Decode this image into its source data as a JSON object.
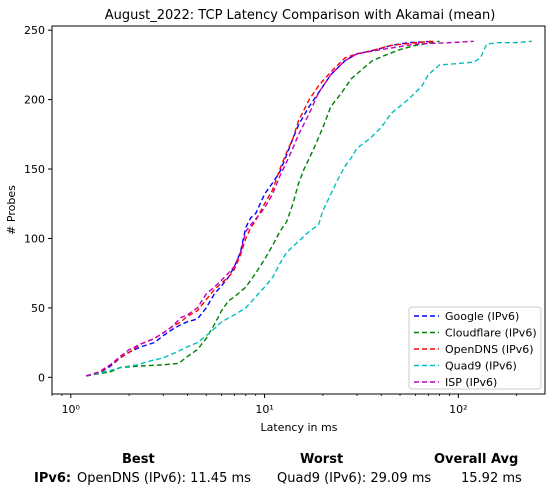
{
  "chart_data": {
    "type": "line",
    "title": "August_2022: TCP Latency Comparison with Akamai (mean)",
    "xlabel": "Latency in ms",
    "ylabel": "# Probes",
    "xscale": "log",
    "xlim": [
      0.8,
      280
    ],
    "ylim": [
      -12,
      253
    ],
    "xticks": [
      {
        "value": 1,
        "label": "10⁰"
      },
      {
        "value": 10,
        "label": "10¹"
      },
      {
        "value": 100,
        "label": "10²"
      }
    ],
    "yticks": [
      0,
      50,
      100,
      150,
      200,
      250
    ],
    "grid": false,
    "legend": "lower-right",
    "series": [
      {
        "name": "Google (IPv6)",
        "color": "#0000ff",
        "points": [
          [
            1.2,
            1
          ],
          [
            1.4,
            3
          ],
          [
            1.6,
            8
          ],
          [
            1.8,
            14
          ],
          [
            2.0,
            18
          ],
          [
            2.3,
            22
          ],
          [
            2.7,
            25
          ],
          [
            3.0,
            30
          ],
          [
            3.3,
            34
          ],
          [
            3.7,
            38
          ],
          [
            4.0,
            40
          ],
          [
            4.5,
            42
          ],
          [
            5.0,
            50
          ],
          [
            5.5,
            60
          ],
          [
            6.0,
            66
          ],
          [
            6.5,
            72
          ],
          [
            7.0,
            80
          ],
          [
            7.5,
            90
          ],
          [
            8.0,
            108
          ],
          [
            8.5,
            115
          ],
          [
            9.0,
            118
          ],
          [
            9.5,
            125
          ],
          [
            10.0,
            132
          ],
          [
            11.0,
            140
          ],
          [
            12.0,
            148
          ],
          [
            13.0,
            160
          ],
          [
            14.0,
            172
          ],
          [
            15.0,
            182
          ],
          [
            17.0,
            195
          ],
          [
            19.0,
            205
          ],
          [
            22.0,
            218
          ],
          [
            26.0,
            228
          ],
          [
            30.0,
            233
          ],
          [
            38.0,
            236
          ],
          [
            45.0,
            239
          ],
          [
            55.0,
            241
          ],
          [
            75.0,
            242
          ]
        ]
      },
      {
        "name": "Cloudflare (IPv6)",
        "color": "#008000",
        "points": [
          [
            1.2,
            1
          ],
          [
            1.6,
            4
          ],
          [
            1.8,
            7
          ],
          [
            2.2,
            8
          ],
          [
            3.0,
            9
          ],
          [
            3.6,
            10
          ],
          [
            4.0,
            15
          ],
          [
            4.5,
            20
          ],
          [
            5.0,
            28
          ],
          [
            5.5,
            38
          ],
          [
            6.0,
            48
          ],
          [
            6.5,
            55
          ],
          [
            7.0,
            58
          ],
          [
            8.0,
            65
          ],
          [
            9.0,
            75
          ],
          [
            10.0,
            85
          ],
          [
            11.0,
            95
          ],
          [
            12.0,
            105
          ],
          [
            13.0,
            112
          ],
          [
            14.0,
            125
          ],
          [
            15.0,
            140
          ],
          [
            16.0,
            150
          ],
          [
            18.0,
            165
          ],
          [
            20.0,
            180
          ],
          [
            22.0,
            195
          ],
          [
            25.0,
            205
          ],
          [
            28.0,
            215
          ],
          [
            32.0,
            222
          ],
          [
            36.0,
            228
          ],
          [
            42.0,
            232
          ],
          [
            50.0,
            236
          ],
          [
            60.0,
            239
          ],
          [
            80.0,
            242
          ]
        ]
      },
      {
        "name": "OpenDNS (IPv6)",
        "color": "#ff0000",
        "points": [
          [
            1.2,
            1
          ],
          [
            1.4,
            3
          ],
          [
            1.6,
            9
          ],
          [
            1.8,
            14
          ],
          [
            2.0,
            18
          ],
          [
            2.3,
            24
          ],
          [
            2.7,
            28
          ],
          [
            3.0,
            32
          ],
          [
            3.3,
            36
          ],
          [
            3.7,
            40
          ],
          [
            4.0,
            44
          ],
          [
            4.5,
            48
          ],
          [
            5.0,
            56
          ],
          [
            5.5,
            63
          ],
          [
            6.0,
            68
          ],
          [
            6.5,
            72
          ],
          [
            7.0,
            78
          ],
          [
            7.5,
            88
          ],
          [
            8.0,
            100
          ],
          [
            8.5,
            108
          ],
          [
            9.0,
            113
          ],
          [
            10.0,
            125
          ],
          [
            11.0,
            135
          ],
          [
            12.0,
            150
          ],
          [
            13.0,
            162
          ],
          [
            14.0,
            172
          ],
          [
            15.0,
            185
          ],
          [
            17.0,
            200
          ],
          [
            19.0,
            210
          ],
          [
            22.0,
            220
          ],
          [
            26.0,
            230
          ],
          [
            30.0,
            233
          ],
          [
            35.0,
            235
          ],
          [
            45.0,
            239
          ],
          [
            60.0,
            241
          ],
          [
            75.0,
            242
          ]
        ]
      },
      {
        "name": "Quad9 (IPv6)",
        "color": "#00bfbf",
        "points": [
          [
            1.2,
            1
          ],
          [
            1.6,
            5
          ],
          [
            1.8,
            7
          ],
          [
            2.2,
            9
          ],
          [
            2.6,
            12
          ],
          [
            3.0,
            14
          ],
          [
            3.5,
            18
          ],
          [
            4.0,
            22
          ],
          [
            4.5,
            25
          ],
          [
            5.0,
            30
          ],
          [
            5.5,
            35
          ],
          [
            6.0,
            40
          ],
          [
            7.0,
            45
          ],
          [
            8.0,
            50
          ],
          [
            9.0,
            58
          ],
          [
            10.0,
            65
          ],
          [
            11.0,
            72
          ],
          [
            12.0,
            82
          ],
          [
            13.0,
            90
          ],
          [
            15.0,
            98
          ],
          [
            17.0,
            105
          ],
          [
            19.0,
            110
          ],
          [
            20.0,
            120
          ],
          [
            22.0,
            132
          ],
          [
            24.0,
            143
          ],
          [
            26.0,
            152
          ],
          [
            28.0,
            158
          ],
          [
            30.0,
            165
          ],
          [
            35.0,
            172
          ],
          [
            40.0,
            180
          ],
          [
            45.0,
            190
          ],
          [
            55.0,
            200
          ],
          [
            60.0,
            205
          ],
          [
            65.0,
            210
          ],
          [
            70.0,
            218
          ],
          [
            80.0,
            225
          ],
          [
            100.0,
            226
          ],
          [
            120.0,
            227
          ],
          [
            130.0,
            230
          ],
          [
            140.0,
            240
          ],
          [
            160.0,
            241
          ],
          [
            200.0,
            241
          ],
          [
            240.0,
            242
          ]
        ]
      },
      {
        "name": "ISP (IPv6)",
        "color": "#bf00bf",
        "points": [
          [
            1.2,
            1
          ],
          [
            1.4,
            4
          ],
          [
            1.6,
            9
          ],
          [
            1.8,
            15
          ],
          [
            2.0,
            20
          ],
          [
            2.3,
            24
          ],
          [
            2.7,
            28
          ],
          [
            3.0,
            32
          ],
          [
            3.3,
            36
          ],
          [
            3.7,
            43
          ],
          [
            4.0,
            45
          ],
          [
            4.5,
            50
          ],
          [
            5.0,
            60
          ],
          [
            5.5,
            65
          ],
          [
            6.0,
            70
          ],
          [
            6.5,
            75
          ],
          [
            7.0,
            80
          ],
          [
            7.5,
            90
          ],
          [
            8.0,
            105
          ],
          [
            8.5,
            110
          ],
          [
            9.0,
            114
          ],
          [
            10.0,
            122
          ],
          [
            11.0,
            132
          ],
          [
            12.0,
            145
          ],
          [
            13.0,
            155
          ],
          [
            14.0,
            165
          ],
          [
            15.0,
            175
          ],
          [
            17.0,
            190
          ],
          [
            19.0,
            205
          ],
          [
            22.0,
            218
          ],
          [
            26.0,
            228
          ],
          [
            30.0,
            233
          ],
          [
            40.0,
            236
          ],
          [
            60.0,
            240
          ],
          [
            90.0,
            241
          ],
          [
            120.0,
            242
          ]
        ]
      }
    ]
  },
  "summary": {
    "best_header": "Best",
    "worst_header": "Worst",
    "avg_header": "Overall Avg",
    "row_label": "IPv6",
    "row_sep": ":",
    "best_value": "OpenDNS (IPv6): 11.45 ms",
    "worst_value": "Quad9 (IPv6): 29.09 ms",
    "avg_value": "15.92 ms"
  }
}
